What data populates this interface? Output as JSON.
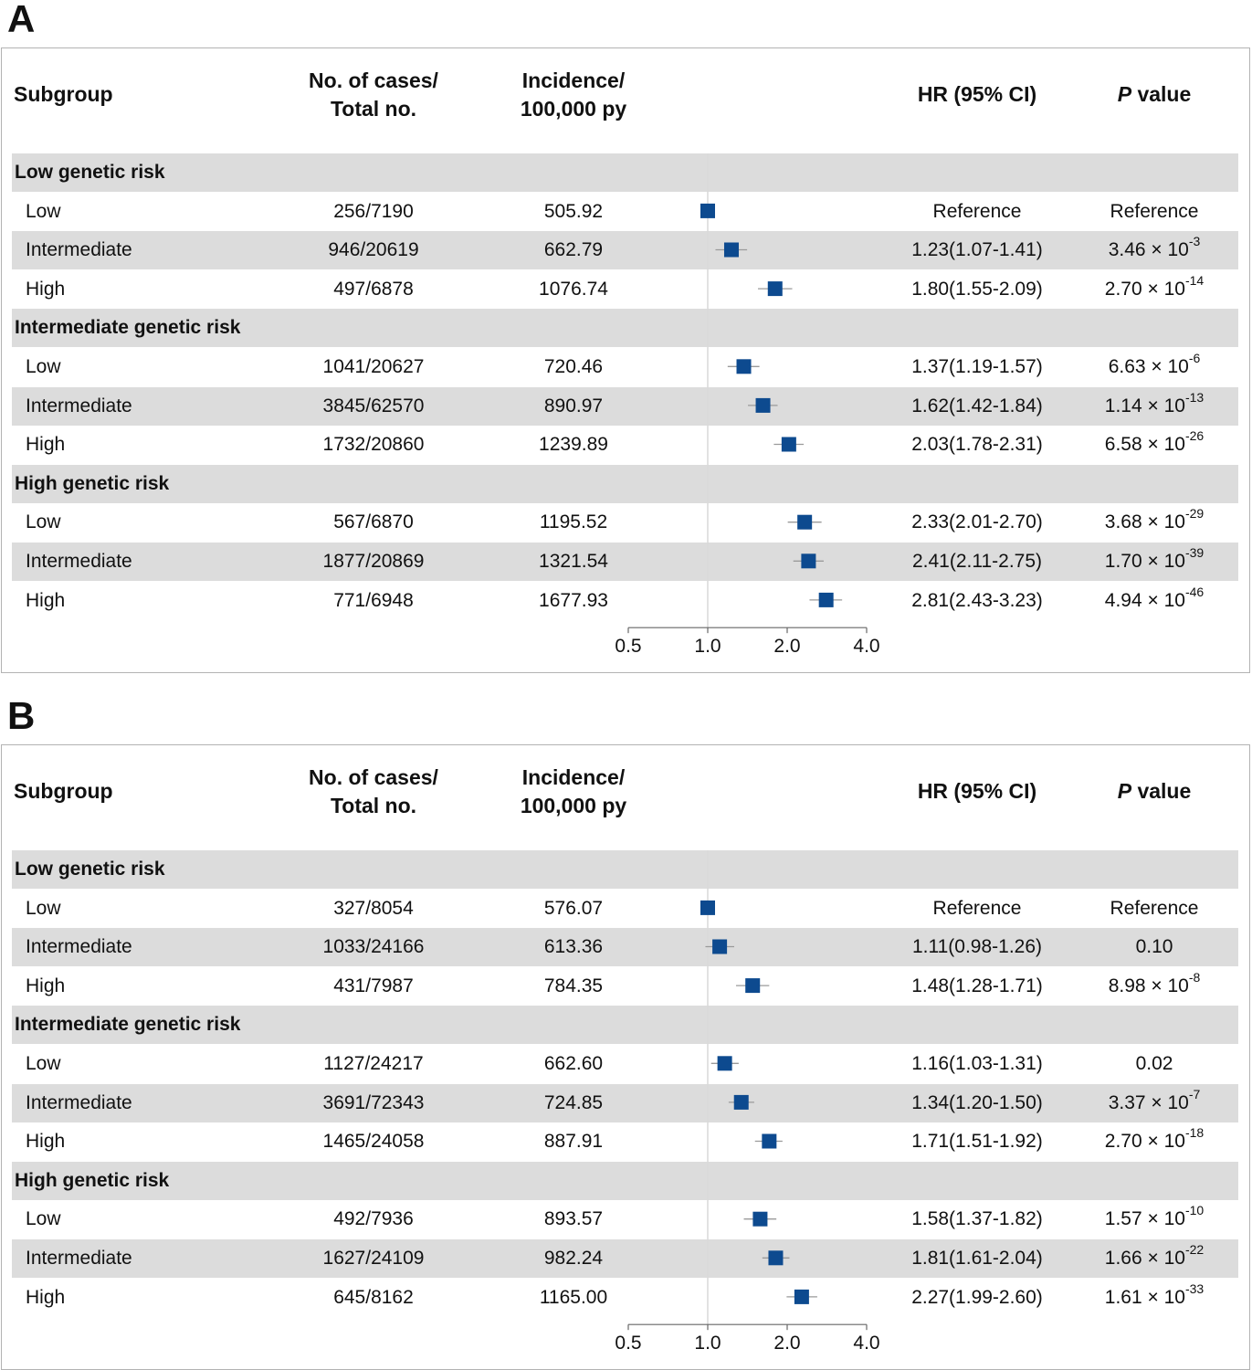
{
  "headers": {
    "subgroup": "Subgroup",
    "cases_line1": "No. of cases/",
    "cases_line2": "Total  no.",
    "incidence_line1": "Incidence/",
    "incidence_line2": "100,000 py",
    "hr": "HR (95% CI)",
    "p_italic": "P",
    "p_rest": " value"
  },
  "colors": {
    "marker": "#0d4a8f",
    "shade": "#dcdcdc",
    "refline": "#d9d9d9",
    "axis": "#666666"
  },
  "chart_data": [
    {
      "panel": "A",
      "type": "forest",
      "x_scale": "log2",
      "xlim": [
        0.5,
        4.0
      ],
      "xticks": [
        "0.5",
        "1.0",
        "2.0",
        "4.0"
      ],
      "reference_line": 1.0,
      "groups": [
        {
          "title": "Low  genetic risk",
          "rows": [
            {
              "label": "Low",
              "cases": "256/7190",
              "incidence": "505.92",
              "hr_text": "Reference",
              "p_base": "Reference",
              "p_exp": "",
              "hr": 1.0,
              "lo": 1.0,
              "hi": 1.0
            },
            {
              "label": "Intermediate",
              "cases": "946/20619",
              "incidence": "662.79",
              "hr_text": "1.23(1.07-1.41)",
              "p_base": "3.46 × 10",
              "p_exp": "-3",
              "hr": 1.23,
              "lo": 1.07,
              "hi": 1.41
            },
            {
              "label": "High",
              "cases": "497/6878",
              "incidence": "1076.74",
              "hr_text": "1.80(1.55-2.09)",
              "p_base": "2.70 × 10",
              "p_exp": "-14",
              "hr": 1.8,
              "lo": 1.55,
              "hi": 2.09
            }
          ]
        },
        {
          "title": "Intermediate genetic risk",
          "rows": [
            {
              "label": "Low",
              "cases": "1041/20627",
              "incidence": "720.46",
              "hr_text": "1.37(1.19-1.57)",
              "p_base": "6.63 × 10",
              "p_exp": "-6",
              "hr": 1.37,
              "lo": 1.19,
              "hi": 1.57
            },
            {
              "label": "Intermediate",
              "cases": "3845/62570",
              "incidence": "890.97",
              "hr_text": "1.62(1.42-1.84)",
              "p_base": "1.14 × 10",
              "p_exp": "-13",
              "hr": 1.62,
              "lo": 1.42,
              "hi": 1.84
            },
            {
              "label": "High",
              "cases": "1732/20860",
              "incidence": "1239.89",
              "hr_text": "2.03(1.78-2.31)",
              "p_base": "6.58 × 10",
              "p_exp": "-26",
              "hr": 2.03,
              "lo": 1.78,
              "hi": 2.31
            }
          ]
        },
        {
          "title": "High genetic risk",
          "rows": [
            {
              "label": "Low",
              "cases": "567/6870",
              "incidence": "1195.52",
              "hr_text": "2.33(2.01-2.70)",
              "p_base": "3.68 × 10",
              "p_exp": "-29",
              "hr": 2.33,
              "lo": 2.01,
              "hi": 2.7
            },
            {
              "label": "Intermediate",
              "cases": "1877/20869",
              "incidence": "1321.54",
              "hr_text": "2.41(2.11-2.75)",
              "p_base": "1.70 × 10",
              "p_exp": "-39",
              "hr": 2.41,
              "lo": 2.11,
              "hi": 2.75
            },
            {
              "label": "High",
              "cases": "771/6948",
              "incidence": "1677.93",
              "hr_text": "2.81(2.43-3.23)",
              "p_base": "4.94 × 10",
              "p_exp": "-46",
              "hr": 2.81,
              "lo": 2.43,
              "hi": 3.23
            }
          ]
        }
      ]
    },
    {
      "panel": "B",
      "type": "forest",
      "x_scale": "log2",
      "xlim": [
        0.5,
        4.0
      ],
      "xticks": [
        "0.5",
        "1.0",
        "2.0",
        "4.0"
      ],
      "reference_line": 1.0,
      "groups": [
        {
          "title": "Low  genetic risk",
          "rows": [
            {
              "label": "Low",
              "cases": "327/8054",
              "incidence": "576.07",
              "hr_text": "Reference",
              "p_base": "Reference",
              "p_exp": "",
              "hr": 1.0,
              "lo": 1.0,
              "hi": 1.0
            },
            {
              "label": "Intermediate",
              "cases": "1033/24166",
              "incidence": "613.36",
              "hr_text": "1.11(0.98-1.26)",
              "p_base": "0.10",
              "p_exp": "",
              "hr": 1.11,
              "lo": 0.98,
              "hi": 1.26
            },
            {
              "label": "High",
              "cases": "431/7987",
              "incidence": "784.35",
              "hr_text": "1.48(1.28-1.71)",
              "p_base": "8.98 × 10",
              "p_exp": "-8",
              "hr": 1.48,
              "lo": 1.28,
              "hi": 1.71
            }
          ]
        },
        {
          "title": "Intermediate genetic risk",
          "rows": [
            {
              "label": "Low",
              "cases": "1127/24217",
              "incidence": "662.60",
              "hr_text": "1.16(1.03-1.31)",
              "p_base": "0.02",
              "p_exp": "",
              "hr": 1.16,
              "lo": 1.03,
              "hi": 1.31
            },
            {
              "label": "Intermediate",
              "cases": "3691/72343",
              "incidence": "724.85",
              "hr_text": "1.34(1.20-1.50)",
              "p_base": "3.37 × 10",
              "p_exp": "-7",
              "hr": 1.34,
              "lo": 1.2,
              "hi": 1.5
            },
            {
              "label": "High",
              "cases": "1465/24058",
              "incidence": "887.91",
              "hr_text": "1.71(1.51-1.92)",
              "p_base": "2.70 × 10",
              "p_exp": "-18",
              "hr": 1.71,
              "lo": 1.51,
              "hi": 1.92
            }
          ]
        },
        {
          "title": "High genetic risk",
          "rows": [
            {
              "label": "Low",
              "cases": "492/7936",
              "incidence": "893.57",
              "hr_text": "1.58(1.37-1.82)",
              "p_base": "1.57 × 10",
              "p_exp": "-10",
              "hr": 1.58,
              "lo": 1.37,
              "hi": 1.82
            },
            {
              "label": "Intermediate",
              "cases": "1627/24109",
              "incidence": "982.24",
              "hr_text": "1.81(1.61-2.04)",
              "p_base": "1.66 × 10",
              "p_exp": "-22",
              "hr": 1.81,
              "lo": 1.61,
              "hi": 2.04
            },
            {
              "label": "High",
              "cases": "645/8162",
              "incidence": "1165.00",
              "hr_text": "2.27(1.99-2.60)",
              "p_base": "1.61 × 10",
              "p_exp": "-33",
              "hr": 2.27,
              "lo": 1.99,
              "hi": 2.6
            }
          ]
        }
      ]
    }
  ]
}
